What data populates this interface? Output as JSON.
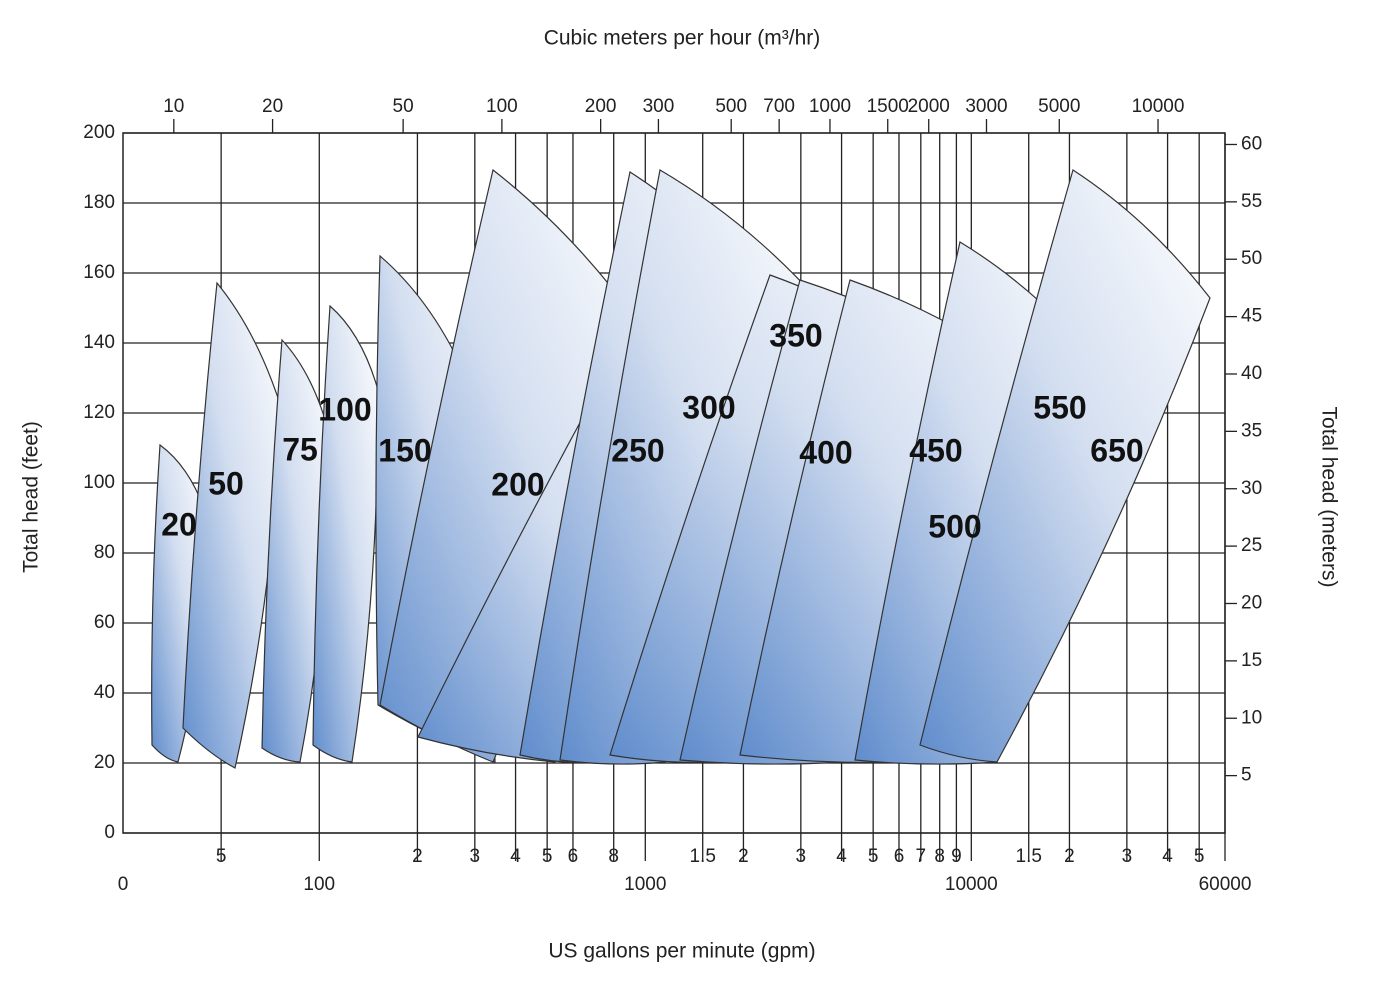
{
  "chart_data": {
    "type": "coverage",
    "x2_label": "Cubic meters per hour (m³/hr)",
    "x_label": "US gallons per minute (gpm)",
    "y_label": "Total head (feet)",
    "y2_label": "Total head (meters)",
    "x_origin_label": "0",
    "log_x": true,
    "xlim": [
      25,
      60000
    ],
    "xticks": [
      {
        "value": 50,
        "label": "5"
      },
      100,
      {
        "value": 200,
        "label": "2"
      },
      {
        "value": 300,
        "label": "3"
      },
      {
        "value": 400,
        "label": "4"
      },
      {
        "value": 500,
        "label": "5"
      },
      {
        "value": 600,
        "label": "6"
      },
      {
        "value": 800,
        "label": "8"
      },
      1000,
      {
        "value": 1500,
        "label": "1.5"
      },
      {
        "value": 2000,
        "label": "2"
      },
      {
        "value": 3000,
        "label": "3"
      },
      {
        "value": 4000,
        "label": "4"
      },
      {
        "value": 5000,
        "label": "5"
      },
      {
        "value": 6000,
        "label": "6"
      },
      {
        "value": 7000,
        "label": "7"
      },
      {
        "value": 8000,
        "label": "8"
      },
      {
        "value": 9000,
        "label": "9"
      },
      10000,
      {
        "value": 15000,
        "label": "1.5"
      },
      {
        "value": 20000,
        "label": "2"
      },
      {
        "value": 30000,
        "label": "3"
      },
      {
        "value": 40000,
        "label": "4"
      },
      {
        "value": 50000,
        "label": "5"
      },
      60000
    ],
    "x2lim": [
      7,
      16000
    ],
    "x2ticks": [
      10,
      20,
      50,
      100,
      200,
      300,
      500,
      700,
      1000,
      1500,
      2000,
      3000,
      5000,
      10000
    ],
    "ylim": [
      0,
      200
    ],
    "yticks": [
      0,
      20,
      40,
      60,
      80,
      100,
      120,
      140,
      160,
      180,
      200
    ],
    "y2lim": [
      0,
      61
    ],
    "y2ticks": [
      5,
      10,
      15,
      20,
      25,
      30,
      35,
      40,
      45,
      50,
      55,
      60
    ],
    "grid": true,
    "regions": [
      "20",
      "50",
      "75",
      "100",
      "150",
      "200",
      "250",
      "300",
      "350",
      "400",
      "450",
      "500",
      "550",
      "650"
    ]
  }
}
